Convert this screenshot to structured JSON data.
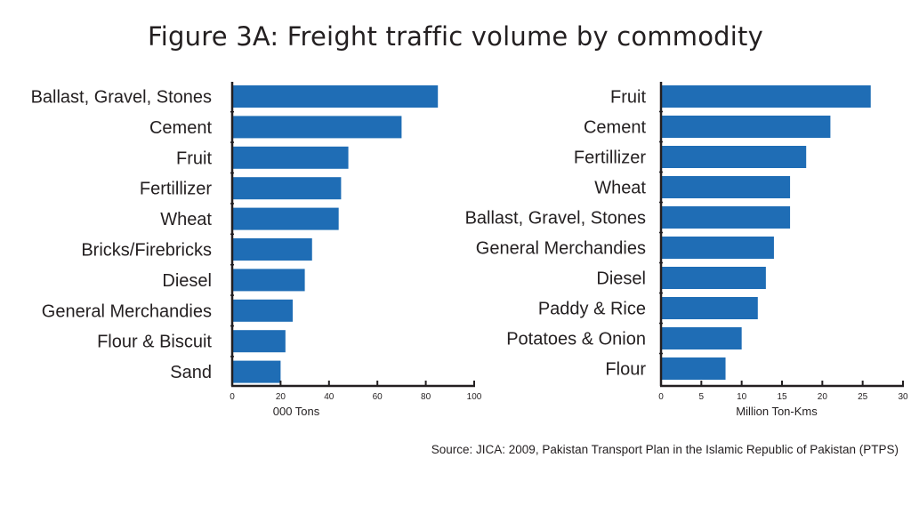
{
  "title": "Figure 3A: Freight traffic volume by commodity",
  "source": "Source: JICA: 2009, Pakistan Transport Plan in the Islamic Republic of Pakistan (PTPS)",
  "colors": {
    "bar": "#1f6db5",
    "axis": "#231f20",
    "text": "#231f20"
  },
  "chart_data": [
    {
      "type": "bar",
      "orientation": "horizontal",
      "title": "",
      "xlabel": "000 Tons",
      "ylabel": "",
      "xlim": [
        0,
        100
      ],
      "xticks": [
        0,
        20,
        40,
        60,
        80,
        100
      ],
      "grid": false,
      "categories": [
        "Ballast, Gravel, Stones",
        "Cement",
        "Fruit",
        "Fertillizer",
        "Wheat",
        "Bricks/Firebricks",
        "Diesel",
        "General Merchandies",
        "Flour & Biscuit",
        "Sand"
      ],
      "values": [
        85,
        70,
        48,
        45,
        44,
        33,
        30,
        25,
        22,
        20
      ]
    },
    {
      "type": "bar",
      "orientation": "horizontal",
      "title": "",
      "xlabel": "Million Ton-Kms",
      "ylabel": "",
      "xlim": [
        0,
        30
      ],
      "xticks": [
        0,
        5,
        10,
        15,
        20,
        25,
        30
      ],
      "grid": false,
      "categories": [
        "Fruit",
        "Cement",
        "Fertillizer",
        "Wheat",
        "Ballast, Gravel, Stones",
        "General Merchandies",
        "Diesel",
        "Paddy & Rice",
        "Potatoes & Onion",
        "Flour"
      ],
      "values": [
        26,
        21,
        18,
        16,
        16,
        14,
        13,
        12,
        10,
        8
      ]
    }
  ]
}
